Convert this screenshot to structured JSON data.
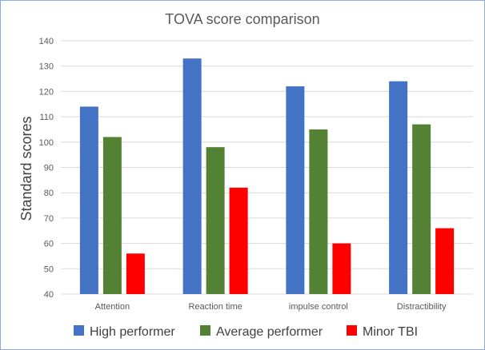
{
  "chart_data": {
    "type": "bar",
    "title": "TOVA  score comparison",
    "xlabel": "",
    "ylabel": "Standard scores",
    "ylim": [
      40,
      140
    ],
    "yticks": [
      40,
      50,
      60,
      70,
      80,
      90,
      100,
      110,
      120,
      130,
      140
    ],
    "grid": true,
    "legend_position": "bottom",
    "categories": [
      "Attention",
      "Reaction time",
      "impulse control",
      "Distractibility"
    ],
    "series": [
      {
        "name": "High performer",
        "color": "#4472c4",
        "values": [
          114,
          133,
          122,
          124
        ]
      },
      {
        "name": "Average performer",
        "color": "#548235",
        "values": [
          102,
          98,
          105,
          107
        ]
      },
      {
        "name": "Minor TBI",
        "color": "#ff0000",
        "values": [
          56,
          82,
          60,
          66
        ]
      }
    ]
  }
}
